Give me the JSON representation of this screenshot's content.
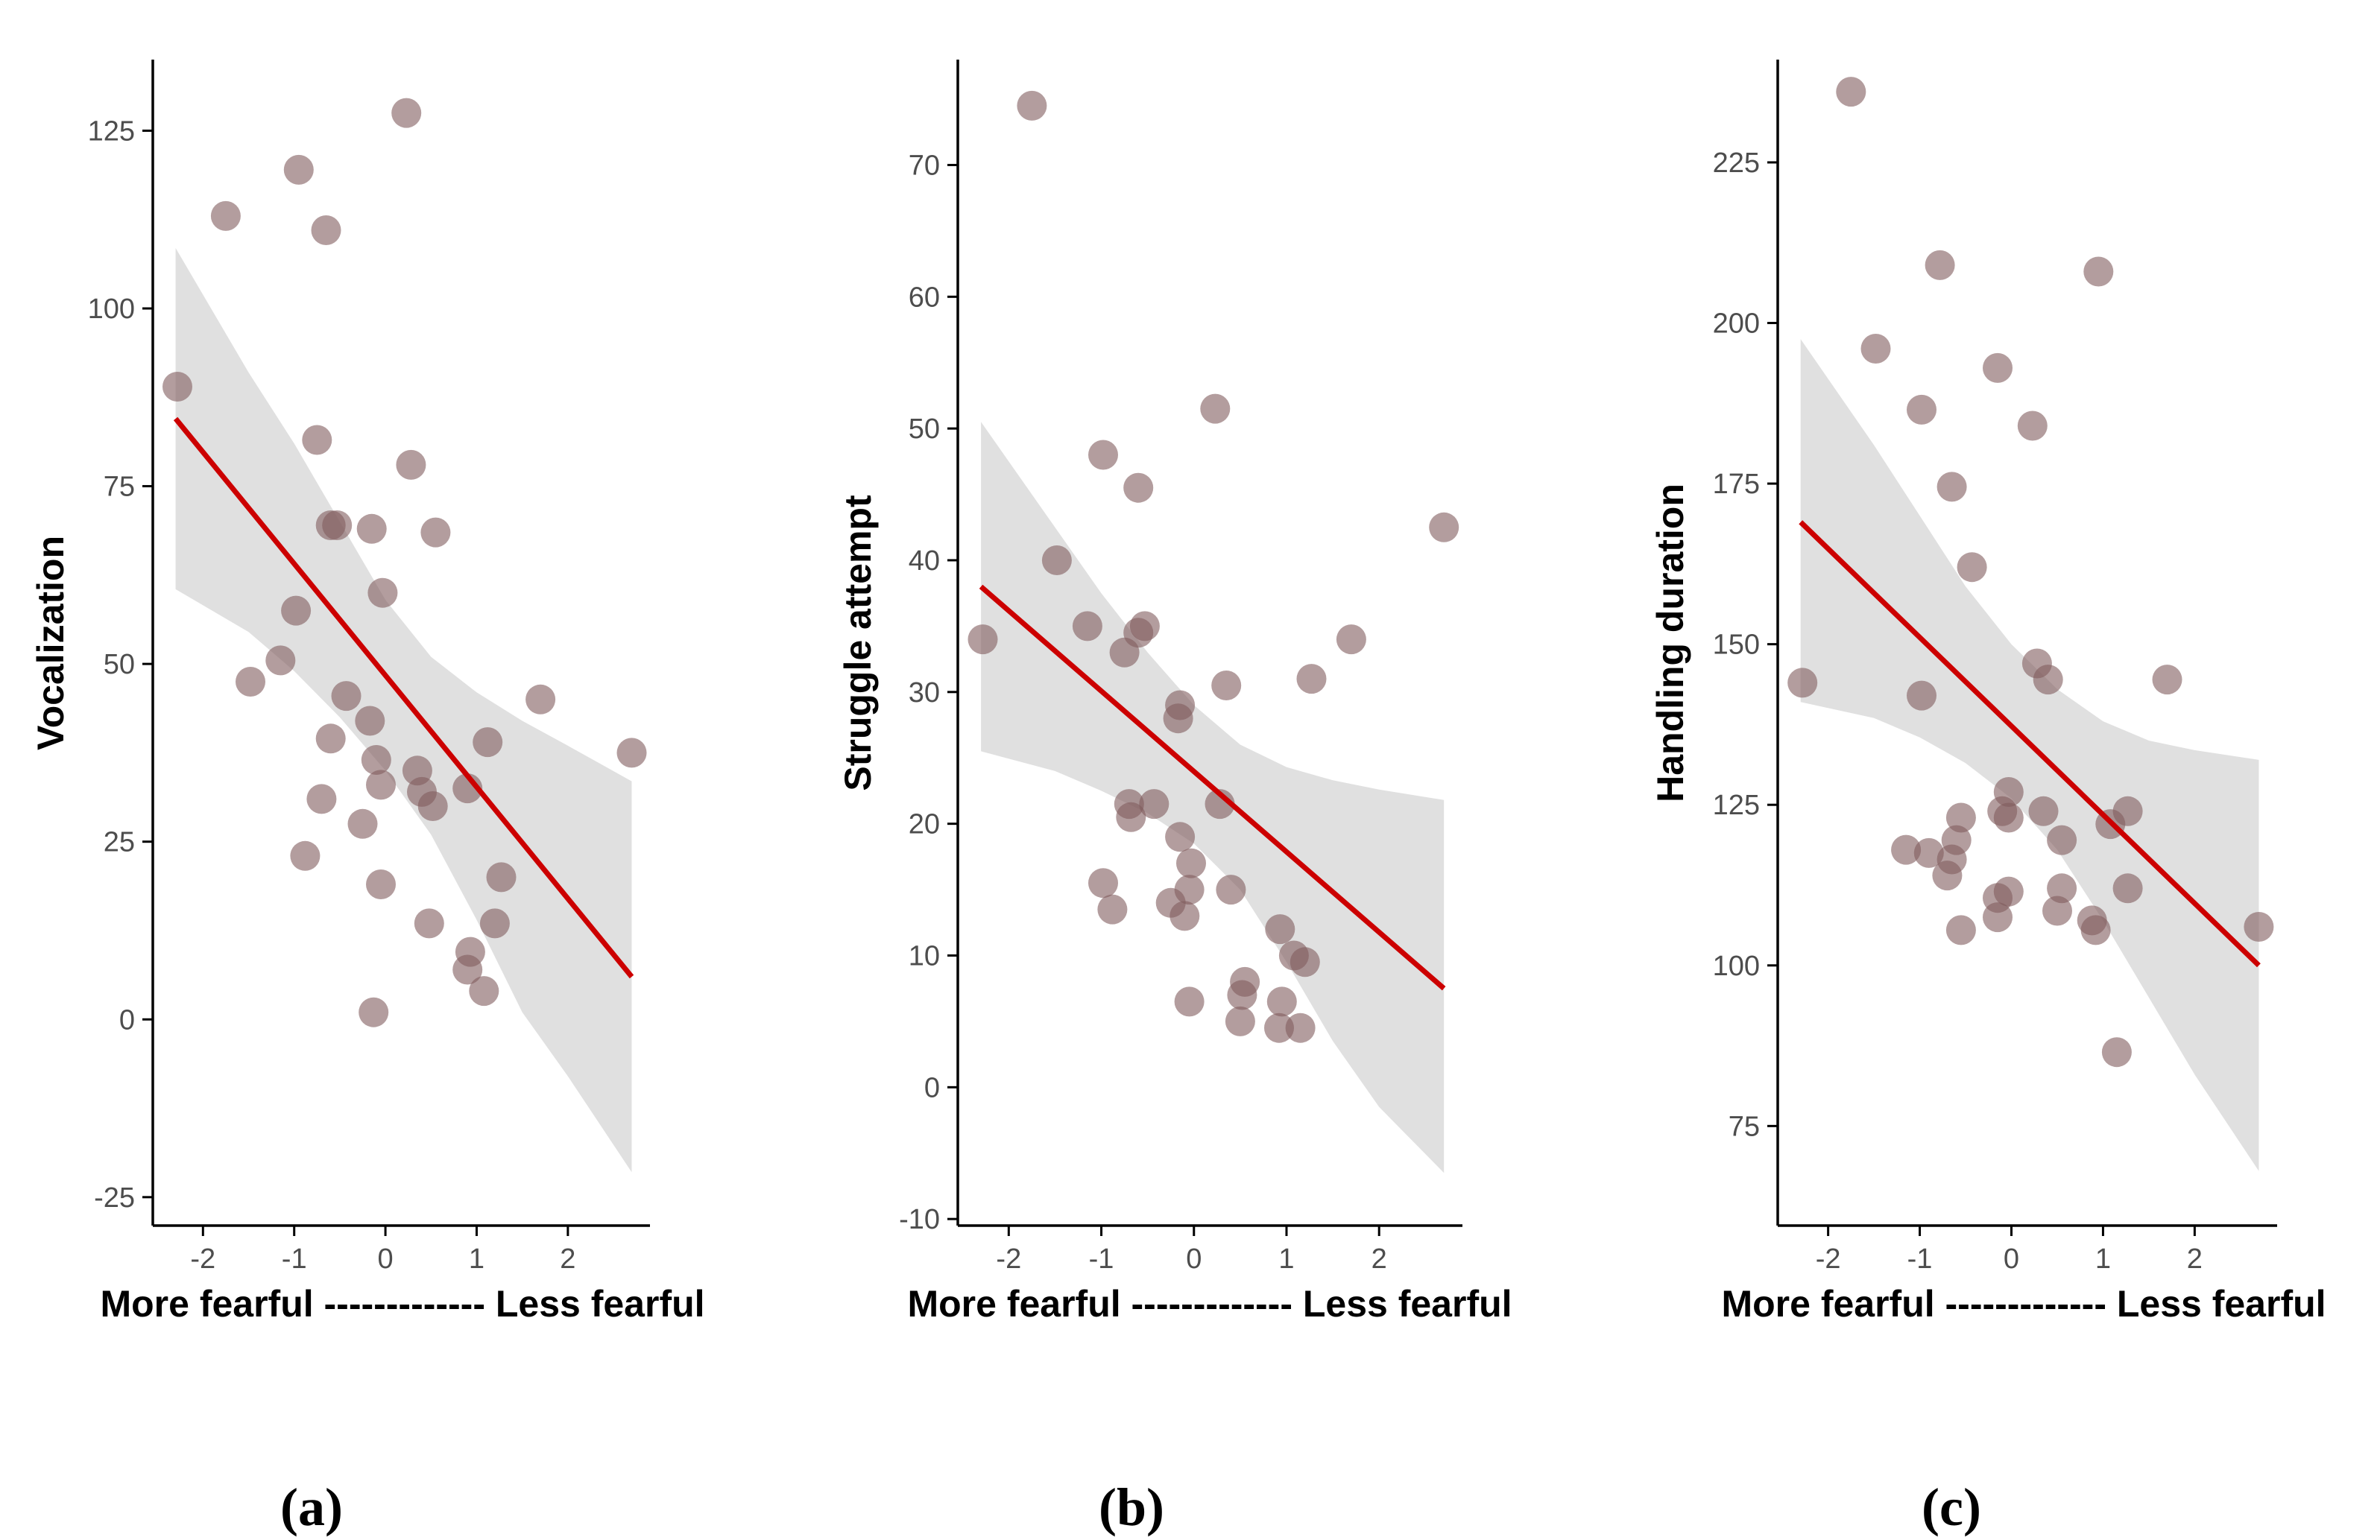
{
  "figure": {
    "background": "#ffffff"
  },
  "style": {
    "point_color": "#815b5d",
    "line_color": "#cc0000",
    "band_color": "#e0e0e0",
    "axis_color": "#000000",
    "tick_text_color": "#4d4d4d"
  },
  "chart_data": [
    {
      "type": "scatter",
      "panel_label": "(a)",
      "xlabel": "More fearful ------------- Less fearful",
      "ylabel": "Vocalization",
      "xlim": [
        -2.55,
        2.9
      ],
      "ylim": [
        -29,
        135
      ],
      "xticks": [
        -2,
        -1,
        0,
        1,
        2
      ],
      "xtick_labels": [
        "-2",
        "-1",
        "0",
        "1",
        "2"
      ],
      "yticks": [
        -25,
        0,
        25,
        50,
        75,
        100,
        125
      ],
      "ytick_labels": [
        "-25",
        "0",
        "25",
        "50",
        "75",
        "100",
        "125"
      ],
      "points": [
        [
          -2.28,
          89
        ],
        [
          -1.75,
          113
        ],
        [
          -0.95,
          119.5
        ],
        [
          0.23,
          127.5
        ],
        [
          -0.65,
          111
        ],
        [
          -0.75,
          81.5
        ],
        [
          0.28,
          78
        ],
        [
          -0.6,
          69.5
        ],
        [
          -0.53,
          69.5
        ],
        [
          -0.15,
          69
        ],
        [
          0.55,
          68.5
        ],
        [
          -0.03,
          60
        ],
        [
          -0.98,
          57.5
        ],
        [
          -1.15,
          50.5
        ],
        [
          -1.48,
          47.5
        ],
        [
          -0.43,
          45.5
        ],
        [
          -0.17,
          42
        ],
        [
          -0.6,
          39.5
        ],
        [
          -0.1,
          36.5
        ],
        [
          1.12,
          39
        ],
        [
          1.7,
          45
        ],
        [
          2.7,
          37.5
        ],
        [
          0.35,
          35
        ],
        [
          -0.05,
          33
        ],
        [
          0.4,
          32
        ],
        [
          0.9,
          32.5
        ],
        [
          0.52,
          30
        ],
        [
          -0.7,
          31
        ],
        [
          -0.25,
          27.5
        ],
        [
          -0.88,
          23
        ],
        [
          -0.05,
          19
        ],
        [
          1.27,
          20
        ],
        [
          0.48,
          13.5
        ],
        [
          1.2,
          13.5
        ],
        [
          0.93,
          9.5
        ],
        [
          0.9,
          7
        ],
        [
          1.08,
          4
        ],
        [
          -0.13,
          1
        ]
      ],
      "fit_line": {
        "x": [
          -2.3,
          2.7
        ],
        "y": [
          84.5,
          6
        ]
      },
      "confidence_band": {
        "x": [
          -2.3,
          -1.5,
          -1.0,
          -0.5,
          0.0,
          0.5,
          1.0,
          1.5,
          2.0,
          2.7
        ],
        "upper": [
          108.5,
          91,
          81,
          70,
          59,
          51,
          46,
          42,
          38.5,
          33.5
        ],
        "lower": [
          60.5,
          54.5,
          49,
          42.5,
          35,
          26,
          14,
          1,
          -8,
          -21.5
        ]
      }
    },
    {
      "type": "scatter",
      "panel_label": "(b)",
      "xlabel": "More fearful ------------- Less fearful",
      "ylabel": "Struggle attempt",
      "xlim": [
        -2.55,
        2.9
      ],
      "ylim": [
        -10.5,
        78
      ],
      "xticks": [
        -2,
        -1,
        0,
        1,
        2
      ],
      "xtick_labels": [
        "-2",
        "-1",
        "0",
        "1",
        "2"
      ],
      "yticks": [
        -10,
        0,
        10,
        20,
        30,
        40,
        50,
        60,
        70
      ],
      "ytick_labels": [
        "-10",
        "0",
        "10",
        "20",
        "30",
        "40",
        "50",
        "60",
        "70"
      ],
      "points": [
        [
          -1.75,
          74.5
        ],
        [
          0.23,
          51.5
        ],
        [
          -0.98,
          48
        ],
        [
          -0.6,
          45.5
        ],
        [
          2.7,
          42.5
        ],
        [
          -1.48,
          40
        ],
        [
          -2.28,
          34
        ],
        [
          -1.15,
          35
        ],
        [
          -0.53,
          35
        ],
        [
          -0.6,
          34.5
        ],
        [
          -0.75,
          33
        ],
        [
          1.7,
          34
        ],
        [
          1.27,
          31
        ],
        [
          0.35,
          30.5
        ],
        [
          -0.15,
          29
        ],
        [
          -0.17,
          28
        ],
        [
          0.28,
          21.5
        ],
        [
          -0.43,
          21.5
        ],
        [
          -0.7,
          21.5
        ],
        [
          -0.68,
          20.5
        ],
        [
          -0.15,
          19
        ],
        [
          -0.03,
          17
        ],
        [
          -0.98,
          15.5
        ],
        [
          -0.05,
          15
        ],
        [
          0.4,
          15
        ],
        [
          -0.88,
          13.5
        ],
        [
          -0.25,
          14
        ],
        [
          -0.1,
          13
        ],
        [
          0.93,
          12
        ],
        [
          1.08,
          10
        ],
        [
          1.2,
          9.5
        ],
        [
          0.55,
          8
        ],
        [
          0.52,
          7
        ],
        [
          -0.05,
          6.5
        ],
        [
          0.95,
          6.5
        ],
        [
          0.5,
          5
        ],
        [
          0.92,
          4.5
        ],
        [
          1.15,
          4.5
        ]
      ],
      "fit_line": {
        "x": [
          -2.3,
          2.7
        ],
        "y": [
          38,
          7.5
        ]
      },
      "confidence_band": {
        "x": [
          -2.3,
          -1.5,
          -1.0,
          -0.5,
          0.0,
          0.5,
          1.0,
          1.5,
          2.0,
          2.7
        ],
        "upper": [
          50.5,
          42.5,
          37.5,
          33,
          29,
          26,
          24.3,
          23.3,
          22.6,
          21.8
        ],
        "lower": [
          25.5,
          24,
          22.5,
          20.8,
          18.5,
          15,
          9.5,
          3.5,
          -1.5,
          -6.5
        ]
      }
    },
    {
      "type": "scatter",
      "panel_label": "(c)",
      "xlabel": "More fearful ------------- Less fearful",
      "ylabel": "Handling duration",
      "xlim": [
        -2.55,
        2.9
      ],
      "ylim": [
        59.5,
        241
      ],
      "xticks": [
        -2,
        -1,
        0,
        1,
        2
      ],
      "xtick_labels": [
        "-2",
        "-1",
        "0",
        "1",
        "2"
      ],
      "yticks": [
        75,
        100,
        125,
        150,
        175,
        200,
        225
      ],
      "ytick_labels": [
        "75",
        "100",
        "125",
        "150",
        "175",
        "200",
        "225"
      ],
      "points": [
        [
          -1.75,
          236
        ],
        [
          -0.78,
          209
        ],
        [
          0.95,
          208
        ],
        [
          -1.48,
          196
        ],
        [
          -0.15,
          193
        ],
        [
          -0.98,
          186.5
        ],
        [
          0.23,
          184
        ],
        [
          -0.65,
          174.5
        ],
        [
          -0.43,
          162
        ],
        [
          0.28,
          147
        ],
        [
          0.4,
          144.5
        ],
        [
          1.7,
          144.5
        ],
        [
          -2.28,
          144
        ],
        [
          -0.98,
          142
        ],
        [
          -0.03,
          127
        ],
        [
          -0.1,
          124
        ],
        [
          0.35,
          124
        ],
        [
          1.27,
          124
        ],
        [
          -0.03,
          123
        ],
        [
          -0.55,
          123
        ],
        [
          1.08,
          122
        ],
        [
          -0.6,
          119.5
        ],
        [
          0.55,
          119.5
        ],
        [
          -1.15,
          118
        ],
        [
          -0.9,
          117.5
        ],
        [
          -0.65,
          116.5
        ],
        [
          -0.7,
          114
        ],
        [
          0.55,
          112
        ],
        [
          1.27,
          112
        ],
        [
          -0.03,
          111.5
        ],
        [
          -0.15,
          110.5
        ],
        [
          0.5,
          108.5
        ],
        [
          -0.15,
          107.5
        ],
        [
          0.88,
          107
        ],
        [
          0.92,
          105.5
        ],
        [
          -0.55,
          105.5
        ],
        [
          2.7,
          106
        ],
        [
          1.15,
          86.5
        ]
      ],
      "fit_line": {
        "x": [
          -2.3,
          2.7
        ],
        "y": [
          169,
          100
        ]
      },
      "confidence_band": {
        "x": [
          -2.3,
          -1.5,
          -1.0,
          -0.5,
          0.0,
          0.5,
          1.0,
          1.5,
          2.0,
          2.7
        ],
        "upper": [
          197.5,
          181,
          170,
          159,
          150,
          143,
          138,
          135,
          133.5,
          132
        ],
        "lower": [
          141,
          138.5,
          135.5,
          131.5,
          126,
          118,
          107,
          95,
          83,
          68
        ]
      }
    }
  ]
}
